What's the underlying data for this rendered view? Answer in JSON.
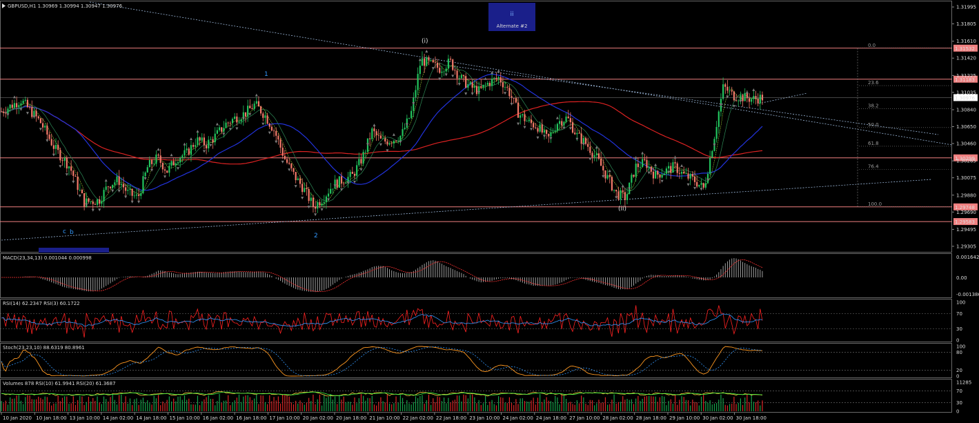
{
  "header": {
    "symbol_line": "GBPUSD,H1  1.30969 1.30994 1.30947 1.30976"
  },
  "alternate_box": {
    "wave": "ii",
    "label": "Alternate #2"
  },
  "wave_labels": [
    "(i)",
    "1",
    "2",
    "c",
    "b",
    "(ii)"
  ],
  "price_axis": {
    "ticks": [
      "1.31995",
      "1.31805",
      "1.31610",
      "1.31420",
      "1.31225",
      "1.31035",
      "1.30840",
      "1.30650",
      "1.30460",
      "1.30265",
      "1.30075",
      "1.29880",
      "1.29690",
      "1.29495",
      "1.29305"
    ],
    "current_price": "1.30976",
    "level_tags": [
      "1.31532",
      "1.31183",
      "1.30299",
      "1.29748",
      "1.29583"
    ]
  },
  "fibonacci": {
    "levels": [
      "0.0",
      "23.6",
      "38.2",
      "50.0",
      "61.8",
      "76.4",
      "100.0"
    ]
  },
  "time_axis": {
    "labels": [
      "10 Jan 2020",
      "10 Jan 18:00",
      "13 Jan 10:00",
      "14 Jan 02:00",
      "14 Jan 18:00",
      "15 Jan 10:00",
      "16 Jan 02:00",
      "16 Jan 18:00",
      "17 Jan 10:00",
      "20 Jan 02:00",
      "20 Jan 18:00",
      "21 Jan 10:00",
      "22 Jan 02:00",
      "22 Jan 18:00",
      "23 Jan 10:00",
      "24 Jan 02:00",
      "24 Jan 18:00",
      "27 Jan 10:00",
      "28 Jan 02:00",
      "28 Jan 18:00",
      "29 Jan 10:00",
      "30 Jan 02:00",
      "30 Jan 18:00"
    ]
  },
  "indicators": {
    "macd": {
      "label": "MACD(23,34,13) 0.001044 0.000998",
      "ticks": [
        "0.001642",
        "0.00",
        "-0.001386"
      ]
    },
    "rsi": {
      "label": "RSI(14) 62.2347  RSI(3) 60.1722",
      "ticks": [
        "100",
        "70",
        "30",
        "0"
      ]
    },
    "stoch": {
      "label": "Stoch(23,23,10) 88.6319 80.8961",
      "ticks": [
        "100",
        "80",
        "20",
        "0"
      ]
    },
    "volumes": {
      "label": "Volumes 878  RSI(10) 61.9941  RSI(20) 61.3687",
      "ticks": [
        "11285",
        "70",
        "30",
        "0"
      ]
    }
  },
  "colors": {
    "bull": "#22c55e",
    "bear": "#f47a6a",
    "ma_red": "#dd2222",
    "ma_blue": "#2233dd",
    "level_line": "#f08080",
    "tag_bg": "#f08080",
    "macd_hist": "#b0b0b0",
    "rsi_main": "#ff2222",
    "rsi_fast": "#3399ff",
    "stoch_main": "#ff9922",
    "stoch_signal": "#3399ff"
  },
  "chart_data": {
    "type": "candlestick",
    "symbol": "GBPUSD",
    "timeframe": "H1",
    "ylim": [
      1.2925,
      1.3205
    ],
    "last": {
      "open": 1.30969,
      "high": 1.30994,
      "low": 1.30947,
      "close": 1.30976
    },
    "horizontal_levels": [
      1.31532,
      1.31183,
      1.30299,
      1.29748,
      1.29583
    ],
    "close_path": [
      [
        0,
        1.3082
      ],
      [
        2,
        1.3095
      ],
      [
        4,
        1.307
      ],
      [
        5.5,
        1.304
      ],
      [
        7,
        1.302
      ],
      [
        8.5,
        1.298
      ],
      [
        10,
        1.2982
      ],
      [
        11,
        1.3
      ],
      [
        12,
        1.3005
      ],
      [
        13,
        1.299
      ],
      [
        14,
        1.2985
      ],
      [
        15,
        1.302
      ],
      [
        16,
        1.303
      ],
      [
        17,
        1.3015
      ],
      [
        18,
        1.303
      ],
      [
        19,
        1.3035
      ],
      [
        20,
        1.305
      ],
      [
        21,
        1.3045
      ],
      [
        22,
        1.3055
      ],
      [
        23,
        1.3068
      ],
      [
        24,
        1.3075
      ],
      [
        25,
        1.308
      ],
      [
        26,
        1.309
      ],
      [
        27,
        1.3078
      ],
      [
        28,
        1.306
      ],
      [
        29,
        1.303
      ],
      [
        30,
        1.301
      ],
      [
        31,
        1.2995
      ],
      [
        32,
        1.2975
      ],
      [
        33,
        1.2985
      ],
      [
        34,
        1.3
      ],
      [
        35,
        1.3005
      ],
      [
        36,
        1.301
      ],
      [
        37,
        1.303
      ],
      [
        38,
        1.306
      ],
      [
        39,
        1.3048
      ],
      [
        40,
        1.305
      ],
      [
        41,
        1.3055
      ],
      [
        42,
        1.308
      ],
      [
        43,
        1.314
      ],
      [
        44,
        1.3135
      ],
      [
        45,
        1.313
      ],
      [
        46,
        1.3138
      ],
      [
        47,
        1.312
      ],
      [
        48,
        1.311
      ],
      [
        49,
        1.3105
      ],
      [
        50,
        1.3115
      ],
      [
        51,
        1.312
      ],
      [
        52,
        1.3105
      ],
      [
        53,
        1.308
      ],
      [
        54,
        1.307
      ],
      [
        55,
        1.3065
      ],
      [
        56,
        1.305
      ],
      [
        57,
        1.307
      ],
      [
        58,
        1.3075
      ],
      [
        59,
        1.3055
      ],
      [
        60,
        1.3045
      ],
      [
        61,
        1.303
      ],
      [
        62,
        1.301
      ],
      [
        63,
        1.299
      ],
      [
        64,
        1.2985
      ],
      [
        65,
        1.302
      ],
      [
        66,
        1.3025
      ],
      [
        67,
        1.301
      ],
      [
        68,
        1.3015
      ],
      [
        69,
        1.302
      ],
      [
        70,
        1.301
      ],
      [
        71,
        1.3005
      ],
      [
        72,
        1.2995
      ],
      [
        73,
        1.305
      ],
      [
        74,
        1.311
      ],
      [
        75,
        1.31
      ],
      [
        76,
        1.3098
      ],
      [
        77,
        1.3096
      ],
      [
        78,
        1.30976
      ]
    ]
  }
}
